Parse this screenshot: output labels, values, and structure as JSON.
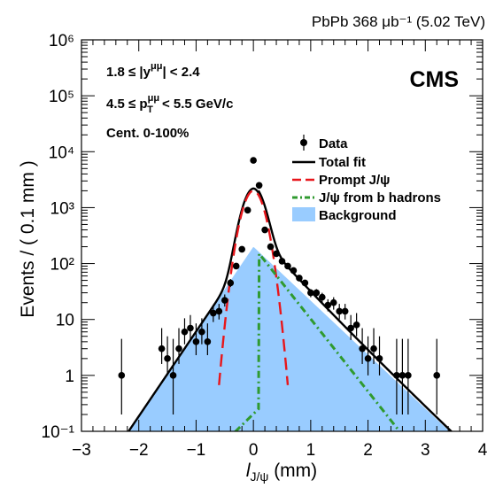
{
  "header": {
    "label": "PbPb 368 μb⁻¹ (5.02 TeV)",
    "experiment": "CMS"
  },
  "annotations": {
    "rapidity": "1.8 ≤ |yμμ| < 2.4",
    "pt": "4.5 ≤ pTμμ < 5.5 GeV/c",
    "centrality": "Cent. 0-100%"
  },
  "chart_data": {
    "type": "line",
    "xlabel": "l_J/ψ (mm)",
    "ylabel": "Events / ( 0.1 mm )",
    "xlim": [
      -3,
      4
    ],
    "ylim": [
      0.1,
      1000000
    ],
    "yscale": "log",
    "grid": false,
    "legend_position": "right",
    "xticks": [
      "−3",
      "−2",
      "−1",
      "0",
      "1",
      "2",
      "3",
      "4"
    ],
    "yticks": [
      "10⁻¹",
      "1",
      "10",
      "10²",
      "10³",
      "10⁴",
      "10⁵",
      "10⁶"
    ],
    "legend": [
      {
        "label": "Data",
        "style": "marker"
      },
      {
        "label": "Total fit",
        "style": "solid",
        "color": "#000000"
      },
      {
        "label": "Prompt J/ψ",
        "style": "dashed",
        "color": "#e8161b"
      },
      {
        "label": "J/ψ from b hadrons",
        "style": "dash-dot",
        "color": "#2f9a2f"
      },
      {
        "label": "Background",
        "style": "fill",
        "color": "#99ccff"
      }
    ],
    "data_points": [
      {
        "x": -2.3,
        "y": 1.0,
        "err": [
          0.2,
          4.5
        ]
      },
      {
        "x": -1.6,
        "y": 3.0,
        "err": [
          1.6,
          7.0
        ]
      },
      {
        "x": -1.5,
        "y": 2.0,
        "err": [
          1.0,
          5.0
        ]
      },
      {
        "x": -1.4,
        "y": 1.0,
        "err": [
          0.2,
          4.5
        ]
      },
      {
        "x": -1.3,
        "y": 3.0,
        "err": [
          1.6,
          7.0
        ]
      },
      {
        "x": -1.2,
        "y": 6.0,
        "err": [
          3.6,
          10.5
        ]
      },
      {
        "x": -1.1,
        "y": 7.0,
        "err": [
          4.3,
          12.0
        ]
      },
      {
        "x": -1.0,
        "y": 4.0,
        "err": [
          2.3,
          8.5
        ]
      },
      {
        "x": -0.9,
        "y": 6.0,
        "err": [
          3.6,
          10.5
        ]
      },
      {
        "x": -0.8,
        "y": 4.0,
        "err": [
          2.3,
          8.5
        ]
      },
      {
        "x": -0.7,
        "y": 13.0,
        "err": [
          9.0,
          18.0
        ]
      },
      {
        "x": -0.6,
        "y": 14.0,
        "err": [
          10.0,
          19.0
        ]
      },
      {
        "x": -0.5,
        "y": 22.0,
        "err": [
          17.0,
          28.0
        ]
      },
      {
        "x": -0.4,
        "y": 45.0,
        "err": [
          38.0,
          53.0
        ]
      },
      {
        "x": -0.3,
        "y": 90.0,
        "err": [
          80.0,
          100.0
        ]
      },
      {
        "x": -0.2,
        "y": 180.0,
        "err": [
          165.0,
          195.0
        ]
      },
      {
        "x": -0.1,
        "y": 900.0,
        "err": [
          870.0,
          930.0
        ]
      },
      {
        "x": 0.0,
        "y": 7000.0,
        "err": [
          6900.0,
          7100.0
        ]
      },
      {
        "x": 0.1,
        "y": 2500.0,
        "err": [
          2450.0,
          2550.0
        ]
      },
      {
        "x": 0.2,
        "y": 400.0,
        "err": [
          380.0,
          420.0
        ]
      },
      {
        "x": 0.3,
        "y": 200.0,
        "err": [
          186.0,
          214.0
        ]
      },
      {
        "x": 0.4,
        "y": 150.0,
        "err": [
          138.0,
          162.0
        ]
      },
      {
        "x": 0.5,
        "y": 110.0,
        "err": [
          100.0,
          120.0
        ]
      },
      {
        "x": 0.6,
        "y": 90.0,
        "err": [
          81.0,
          99.0
        ]
      },
      {
        "x": 0.7,
        "y": 75.0,
        "err": [
          67.0,
          83.0
        ]
      },
      {
        "x": 0.8,
        "y": 55.0,
        "err": [
          48.0,
          62.0
        ]
      },
      {
        "x": 0.9,
        "y": 45.0,
        "err": [
          39.0,
          51.0
        ]
      },
      {
        "x": 1.0,
        "y": 30.0,
        "err": [
          25.0,
          35.0
        ]
      },
      {
        "x": 1.1,
        "y": 30.0,
        "err": [
          25.0,
          35.0
        ]
      },
      {
        "x": 1.2,
        "y": 25.0,
        "err": [
          20.0,
          30.0
        ]
      },
      {
        "x": 1.3,
        "y": 18.0,
        "err": [
          14.0,
          23.0
        ]
      },
      {
        "x": 1.4,
        "y": 20.0,
        "err": [
          15.0,
          25.0
        ]
      },
      {
        "x": 1.5,
        "y": 14.0,
        "err": [
          10.0,
          19.0
        ]
      },
      {
        "x": 1.6,
        "y": 14.0,
        "err": [
          10.0,
          19.0
        ]
      },
      {
        "x": 1.7,
        "y": 7.0,
        "err": [
          4.3,
          12.0
        ]
      },
      {
        "x": 1.8,
        "y": 8.0,
        "err": [
          5.0,
          13.0
        ]
      },
      {
        "x": 1.9,
        "y": 3.0,
        "err": [
          1.6,
          7.0
        ]
      },
      {
        "x": 2.0,
        "y": 2.0,
        "err": [
          1.0,
          5.0
        ]
      },
      {
        "x": 2.1,
        "y": 3.0,
        "err": [
          1.6,
          7.0
        ]
      },
      {
        "x": 2.2,
        "y": 2.0,
        "err": [
          1.0,
          5.0
        ]
      },
      {
        "x": 2.5,
        "y": 1.0,
        "err": [
          0.2,
          4.5
        ]
      },
      {
        "x": 2.6,
        "y": 1.0,
        "err": [
          0.2,
          4.5
        ]
      },
      {
        "x": 2.7,
        "y": 1.0,
        "err": [
          0.2,
          4.5
        ]
      },
      {
        "x": 3.2,
        "y": 1.0,
        "err": [
          0.2,
          4.5
        ]
      }
    ]
  }
}
